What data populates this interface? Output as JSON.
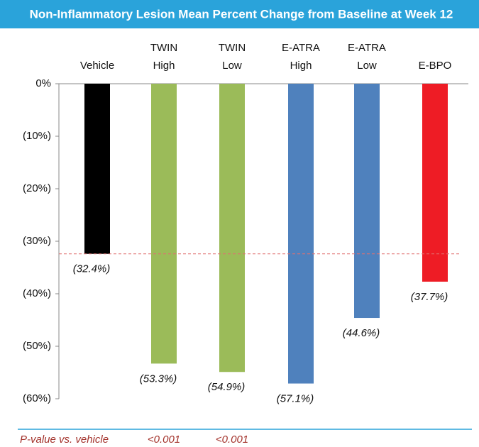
{
  "chart_data": {
    "type": "bar",
    "title": "Non-Inflammatory Lesion Mean Percent Change from Baseline at Week 12",
    "categories": [
      [
        "Vehicle"
      ],
      [
        "TWIN",
        "High"
      ],
      [
        "TWIN",
        "Low"
      ],
      [
        "E-ATRA",
        "High"
      ],
      [
        "E-ATRA",
        "Low"
      ],
      [
        "E-BPO"
      ]
    ],
    "values": [
      -32.4,
      -53.3,
      -54.9,
      -57.1,
      -44.6,
      -37.7
    ],
    "value_labels": [
      "(32.4%)",
      "(53.3%)",
      "(54.9%)",
      "(57.1%)",
      "(44.6%)",
      "(37.7%)"
    ],
    "colors": [
      "#000000",
      "#9bbb59",
      "#9bbb59",
      "#4f81bd",
      "#4f81bd",
      "#ee1c25"
    ],
    "ylim": [
      -60,
      0
    ],
    "yticks": [
      {
        "value": 0,
        "label": "0%"
      },
      {
        "value": -10,
        "label": "(10%)"
      },
      {
        "value": -20,
        "label": "(20%)"
      },
      {
        "value": -30,
        "label": "(30%)"
      },
      {
        "value": -40,
        "label": "(40%)"
      },
      {
        "value": -50,
        "label": "(50%)"
      },
      {
        "value": -60,
        "label": "(60%)"
      }
    ],
    "p_values": {
      "label": "P-value vs. vehicle",
      "values": [
        null,
        "<0.001",
        "<0.001",
        null,
        null,
        null
      ]
    }
  }
}
